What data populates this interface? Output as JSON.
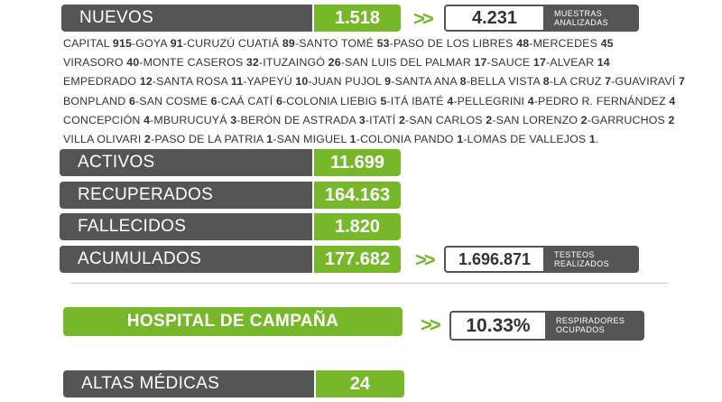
{
  "nuevos": {
    "label": "NUEVOS",
    "value": "1.518"
  },
  "muestras": {
    "value": "4.231",
    "label_line1": "MUESTRAS",
    "label_line2": "ANALIZADAS"
  },
  "cities": [
    {
      "line": [
        [
          "CAPITAL ",
          "915"
        ],
        [
          "-GOYA ",
          "91"
        ],
        [
          "-CURUZÚ CUATIÁ ",
          "89"
        ],
        [
          "-SANTO TOMÉ ",
          "53"
        ],
        [
          "-PASO DE LOS LIBRES ",
          "48"
        ],
        [
          "-MERCEDES ",
          "45"
        ]
      ]
    },
    {
      "line": [
        [
          "VIRASORO ",
          "40"
        ],
        [
          "-MONTE CASEROS ",
          "32"
        ],
        [
          "-ITUZAINGÓ ",
          "26"
        ],
        [
          "-SAN LUIS DEL PALMAR ",
          "17"
        ],
        [
          "-SAUCE ",
          "17"
        ],
        [
          "-ALVEAR ",
          "14"
        ]
      ]
    },
    {
      "line": [
        [
          "EMPEDRADO ",
          "12"
        ],
        [
          "-SANTA ROSA ",
          "11"
        ],
        [
          "-YAPEYÚ ",
          "10"
        ],
        [
          "-JUAN PUJOL ",
          "9"
        ],
        [
          "-SANTA ANA ",
          "8"
        ],
        [
          "-BELLA VISTA ",
          "8"
        ],
        [
          "-LA CRUZ ",
          "7"
        ],
        [
          "-GUAVIRAVÍ ",
          "7"
        ]
      ]
    },
    {
      "line": [
        [
          "BONPLAND ",
          "6"
        ],
        [
          "-SAN COSME ",
          "6"
        ],
        [
          "-CAÁ CATÍ ",
          "6"
        ],
        [
          "-COLONIA LIEBIG ",
          "5"
        ],
        [
          "-ITÁ IBATÉ ",
          "4"
        ],
        [
          "-PELLEGRINI ",
          "4"
        ],
        [
          "-PEDRO R. FERNÁNDEZ ",
          "4"
        ]
      ]
    },
    {
      "line": [
        [
          "CONCEPCIÓN ",
          "4"
        ],
        [
          "-MBURUCUYÁ ",
          "3"
        ],
        [
          "-BERÓN DE ASTRADA ",
          "3"
        ],
        [
          "-ITATÍ ",
          "2"
        ],
        [
          "-SAN CARLOS ",
          "2"
        ],
        [
          "-SAN LORENZO ",
          "2"
        ],
        [
          "-GARRUCHOS ",
          "2"
        ]
      ]
    },
    {
      "line": [
        [
          "VILLA OLIVARI ",
          "2"
        ],
        [
          "-PASO DE LA PATRIA ",
          "1"
        ],
        [
          "-SAN MIGUEL ",
          "1"
        ],
        [
          "-COLONIA PANDO ",
          "1"
        ],
        [
          "-LOMAS DE VALLEJOS ",
          "1"
        ]
      ],
      "tail": "."
    }
  ],
  "activos": {
    "label": "ACTIVOS",
    "value": "11.699"
  },
  "recuperados": {
    "label": "RECUPERADOS",
    "value": "164.163"
  },
  "fallecidos": {
    "label": "FALLECIDOS",
    "value": "1.820"
  },
  "acumulados": {
    "label": "ACUMULADOS",
    "value": "177.682"
  },
  "testeos": {
    "value": "1.696.871",
    "label_line1": "TESTEOS",
    "label_line2": "REALIZADOS"
  },
  "hospital": {
    "label": "HOSPITAL DE CAMPAÑA"
  },
  "respiradores": {
    "value": "10.33%",
    "label_line1": "RESPIRADORES",
    "label_line2": "OCUPADOS"
  },
  "altas": {
    "label": "ALTAS MÉDICAS",
    "value": "24"
  },
  "arrows": ">>",
  "colors": {
    "green": "#77b82a",
    "gray": "#555555"
  }
}
